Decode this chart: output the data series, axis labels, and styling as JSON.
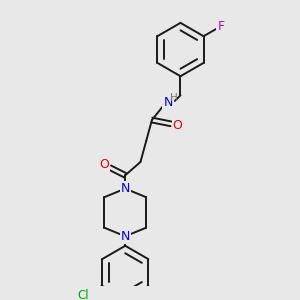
{
  "background_color": "#e8e8e8",
  "bond_color": "#1a1a1a",
  "atom_colors": {
    "N": "#0000ee",
    "O": "#ee0000",
    "F": "#cc00cc",
    "Cl": "#00aa00",
    "H": "#777777",
    "C": "#1a1a1a"
  },
  "font_size_atom": 8.5,
  "figsize": [
    3.0,
    3.0
  ],
  "dpi": 100
}
